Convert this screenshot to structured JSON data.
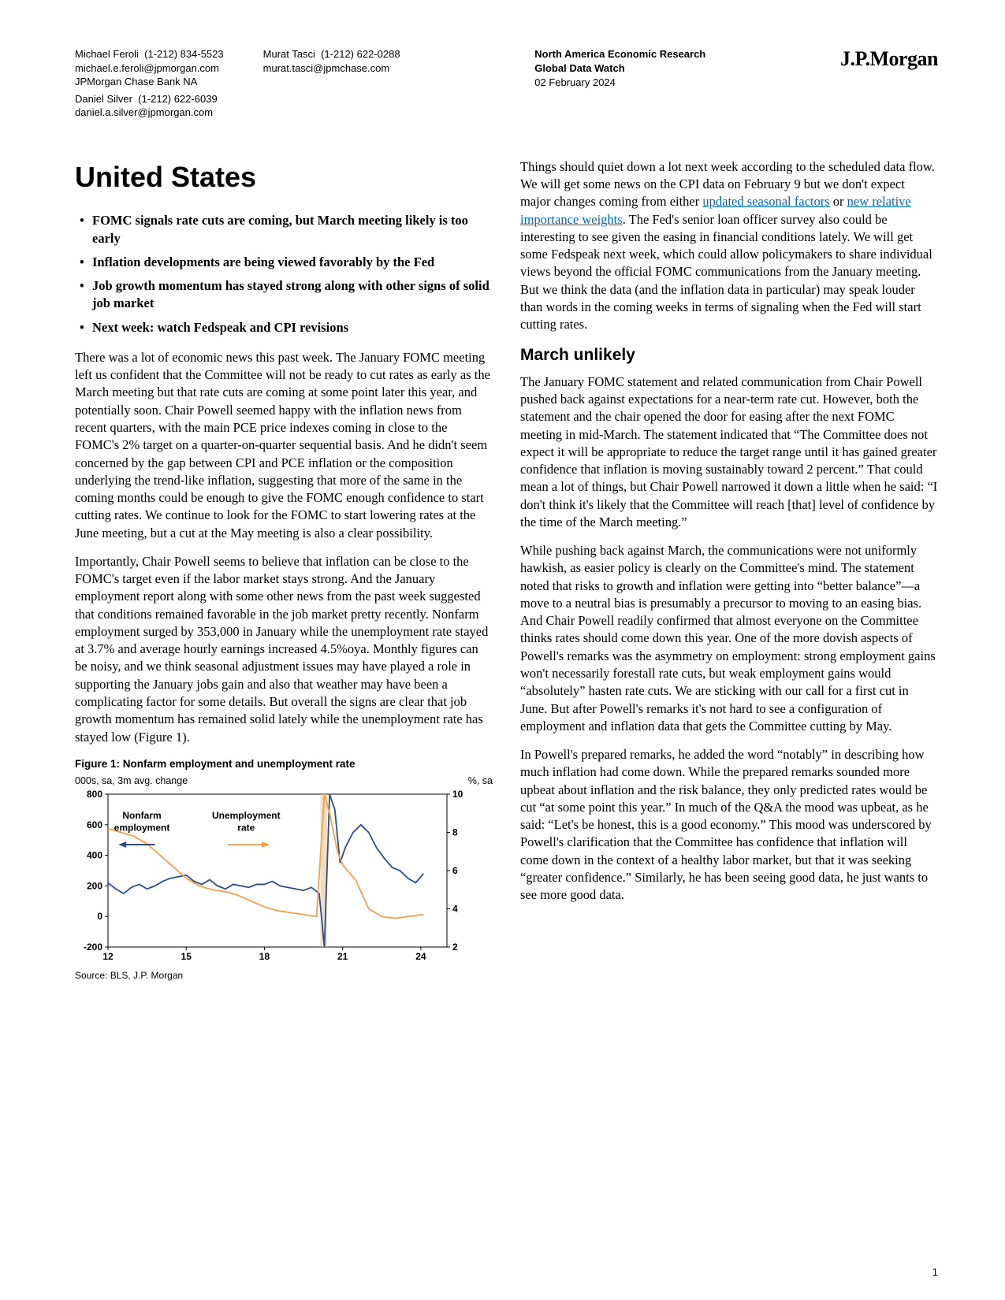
{
  "header": {
    "contacts": [
      {
        "name": "Michael Feroli",
        "phone": "(1-212) 834-5523",
        "email": "michael.e.feroli@jpmorgan.com",
        "org": "JPMorgan Chase Bank NA"
      },
      {
        "name": "Daniel Silver",
        "phone": "(1-212) 622-6039",
        "email": "daniel.a.silver@jpmorgan.com",
        "org": ""
      },
      {
        "name": "Murat Tasci",
        "phone": "(1-212) 622-0288",
        "email": "murat.tasci@jpmchase.com",
        "org": ""
      }
    ],
    "pub_line1": "North America Economic Research",
    "pub_line2": "Global Data Watch",
    "pub_date": "02 February 2024",
    "logo": "J.P.Morgan"
  },
  "title": "United States",
  "bullets": [
    "FOMC signals rate cuts are coming, but March meeting likely is too early",
    "Inflation developments are being viewed favorably by the Fed",
    "Job growth momentum has stayed strong along with other signs of solid job market",
    "Next week: watch Fedspeak and CPI revisions"
  ],
  "left_paras": [
    "There was a lot of economic news this past week. The January FOMC meeting left us confident that the Committee will not be ready to cut rates as early as the March meeting but that rate cuts are coming at some point later this year, and potentially soon. Chair Powell seemed happy with the inflation news from recent quarters, with the main PCE price indexes coming in close to the FOMC's 2% target on a quarter-on-quarter sequential basis. And he didn't seem concerned by the gap between CPI and PCE inflation or the composition underlying the trend-like inflation, suggesting that more of the same in the coming months could be enough to give the FOMC enough confidence to start cutting rates. We continue to look for the FOMC to start lowering rates at the June meeting, but a cut at the May meeting is also a clear possibility.",
    "Importantly, Chair Powell seems to believe that inflation can be close to the FOMC's target even if the labor market stays strong. And the January employment report along with some other news from the past week suggested that conditions remained favorable in the job market pretty recently. Nonfarm employment surged by 353,000 in January while the unemployment rate stayed at 3.7% and average hourly earnings increased 4.5%oya. Monthly figures can be noisy, and we think seasonal adjustment issues may have played a role in supporting the January jobs gain and also that weather may have been a complicating factor for some details. But overall the signs are clear that job growth momentum has remained solid lately while the unemployment rate has stayed low (Figure 1)."
  ],
  "right_intro_pre": "Things should quiet down a lot next week according to the scheduled data flow. We will get some news on the CPI data on February 9 but we don't expect major changes coming from either ",
  "right_link1": "updated seasonal factors",
  "right_intro_mid": " or ",
  "right_link2": "new relative importance weights",
  "right_intro_post": ". The Fed's senior loan officer survey also could be interesting to see given the easing in financial conditions lately. We will get some Fedspeak next week, which could allow policymakers to share individual views beyond the official FOMC communications from the January meeting. But we think the data (and the inflation data in particular) may speak louder than words in the coming weeks in terms of signaling when the Fed will start cutting rates.",
  "section_heading": "March unlikely",
  "right_paras": [
    "The January FOMC statement and related communication from Chair Powell pushed back against expectations for a near-term rate cut. However, both the statement and the chair opened the door for easing after the next FOMC meeting in mid-March. The statement indicated that “The Committee does not expect it will be appropriate to reduce the target range until it has gained greater confidence that inflation is moving sustainably toward 2 percent.” That could mean a lot of things, but Chair Powell narrowed it down a little when he said: “I don't think it's likely that the Committee will reach [that] level of confidence by the time of the March meeting.”",
    "While pushing back against March, the communications were not uniformly hawkish, as easier policy is clearly on the Committee's mind. The statement noted that risks to growth and inflation were getting into “better balance”—a move to a neutral bias is presumably a precursor to moving to an easing bias. And Chair Powell readily confirmed that almost everyone on the Committee thinks rates should come down this year. One of the more dovish aspects of Powell's remarks was the asymmetry on employment: strong employment gains won't necessarily forestall rate cuts, but weak employment gains would “absolutely” hasten rate cuts. We are sticking with our call for a first cut in June. But after Powell's remarks it's not hard to see a configuration of employment and inflation data that gets the Committee cutting by May.",
    "In Powell's prepared remarks, he added the word “notably” in describing how much inflation had come down. While the prepared remarks sounded more upbeat about inflation and the risk balance, they only predicted rates would be cut “at some point this year.” In much of the Q&A the mood was upbeat, as he said: “Let's be honest, this is a good economy.” This mood was underscored by Powell's clarification that the Committee has confidence that inflation will come down in the context of a healthy labor market, but that it was seeking “greater confidence.” Similarly, he has been seeing good data, he just wants to see more good data."
  ],
  "figure": {
    "title": "Figure 1: Nonfarm employment and unemployment rate",
    "left_axis_label": "000s, sa, 3m avg. change",
    "right_axis_label": "%, sa",
    "source": "Source: BLS, J.P. Morgan",
    "series1_label": "Nonfarm employment",
    "series2_label": "Unemployment rate",
    "x_ticks": [
      "12",
      "15",
      "18",
      "21",
      "24"
    ],
    "y_left_ticks": [
      800,
      600,
      400,
      200,
      0,
      -200
    ],
    "y_right_ticks": [
      10,
      8,
      6,
      4,
      2
    ],
    "y_left_range": [
      -200,
      800
    ],
    "y_right_range": [
      2,
      10
    ],
    "x_range": [
      2012,
      2025
    ],
    "nonfarm_color": "#2a4d8f",
    "unemp_color": "#f7a04b",
    "axis_color": "#000000",
    "bg_color": "#ffffff",
    "line_width": 1.8,
    "font_size_ticks": 12,
    "nonfarm": [
      [
        2012.0,
        220
      ],
      [
        2012.3,
        180
      ],
      [
        2012.6,
        150
      ],
      [
        2012.9,
        190
      ],
      [
        2013.2,
        210
      ],
      [
        2013.5,
        180
      ],
      [
        2013.8,
        200
      ],
      [
        2014.1,
        230
      ],
      [
        2014.4,
        250
      ],
      [
        2014.7,
        260
      ],
      [
        2015.0,
        270
      ],
      [
        2015.3,
        230
      ],
      [
        2015.6,
        210
      ],
      [
        2015.9,
        240
      ],
      [
        2016.2,
        200
      ],
      [
        2016.5,
        180
      ],
      [
        2016.8,
        210
      ],
      [
        2017.1,
        200
      ],
      [
        2017.4,
        190
      ],
      [
        2017.7,
        210
      ],
      [
        2018.0,
        210
      ],
      [
        2018.3,
        230
      ],
      [
        2018.6,
        200
      ],
      [
        2018.9,
        190
      ],
      [
        2019.2,
        180
      ],
      [
        2019.5,
        170
      ],
      [
        2019.8,
        190
      ],
      [
        2020.1,
        150
      ],
      [
        2020.3,
        -200
      ],
      [
        2020.5,
        800
      ],
      [
        2020.7,
        700
      ],
      [
        2020.9,
        350
      ],
      [
        2021.1,
        450
      ],
      [
        2021.4,
        550
      ],
      [
        2021.7,
        600
      ],
      [
        2022.0,
        550
      ],
      [
        2022.3,
        450
      ],
      [
        2022.6,
        380
      ],
      [
        2022.9,
        320
      ],
      [
        2023.2,
        300
      ],
      [
        2023.5,
        250
      ],
      [
        2023.8,
        220
      ],
      [
        2024.1,
        280
      ]
    ],
    "unemp": [
      [
        2012.0,
        8.2
      ],
      [
        2012.5,
        8.0
      ],
      [
        2013.0,
        7.8
      ],
      [
        2013.5,
        7.4
      ],
      [
        2014.0,
        6.8
      ],
      [
        2014.5,
        6.2
      ],
      [
        2015.0,
        5.6
      ],
      [
        2015.5,
        5.2
      ],
      [
        2016.0,
        5.0
      ],
      [
        2016.5,
        4.9
      ],
      [
        2017.0,
        4.7
      ],
      [
        2017.5,
        4.4
      ],
      [
        2018.0,
        4.1
      ],
      [
        2018.5,
        3.9
      ],
      [
        2019.0,
        3.8
      ],
      [
        2019.5,
        3.7
      ],
      [
        2020.0,
        3.6
      ],
      [
        2020.3,
        10.0
      ],
      [
        2020.5,
        9.0
      ],
      [
        2020.8,
        7.0
      ],
      [
        2021.0,
        6.3
      ],
      [
        2021.5,
        5.5
      ],
      [
        2022.0,
        4.0
      ],
      [
        2022.5,
        3.6
      ],
      [
        2023.0,
        3.5
      ],
      [
        2023.5,
        3.6
      ],
      [
        2024.1,
        3.7
      ]
    ]
  },
  "page_number": "1"
}
